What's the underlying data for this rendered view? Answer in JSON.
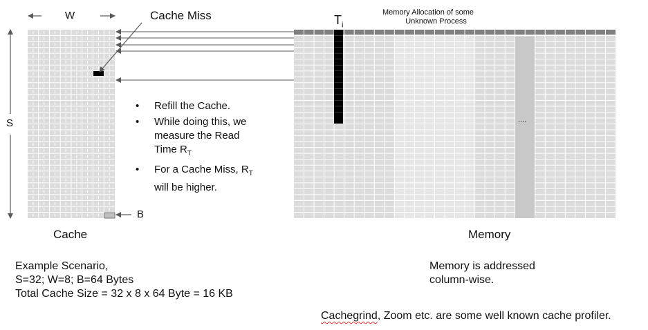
{
  "labels": {
    "w": "W",
    "s": "S",
    "b": "B",
    "cache_miss": "Cache Miss",
    "ti_main": "T",
    "ti_sub": "i",
    "memory_alloc_line1": "Memory Allocation of some",
    "memory_alloc_line2": "Unknown Process",
    "cache": "Cache",
    "memory": "Memory",
    "ellipsis": "....",
    "memory_note_line1": "Memory is addressed",
    "memory_note_line2": "column-wise.",
    "profiler_word": "Cachegrind",
    "profiler_rest": ", Zoom etc. are some well known cache profiler."
  },
  "bullets": {
    "b1": "Refill the Cache.",
    "b2_line1": "While doing this, we",
    "b2_line2": "measure the Read",
    "b2_line3_pre": "Time R",
    "b2_line3_sub": "T",
    "b3_line1_pre": "For a Cache Miss, R",
    "b3_line1_sub": "T",
    "b3_line2": "will be higher."
  },
  "scenario": {
    "line1": "Example Scenario,",
    "line2": "S=32; W=8; B=64 Bytes",
    "line3": "Total Cache Size = 32 x 8 x 64 Byte = 16 KB"
  },
  "colors": {
    "cell_light": "#dcdcdc",
    "cell_band": "#e6e6e6",
    "grid_line": "#ffffff",
    "header_row": "#7f7f7f",
    "accessed_block": "#000000",
    "highlight_column": "#c8c8c8",
    "arrow": "#595959"
  }
}
